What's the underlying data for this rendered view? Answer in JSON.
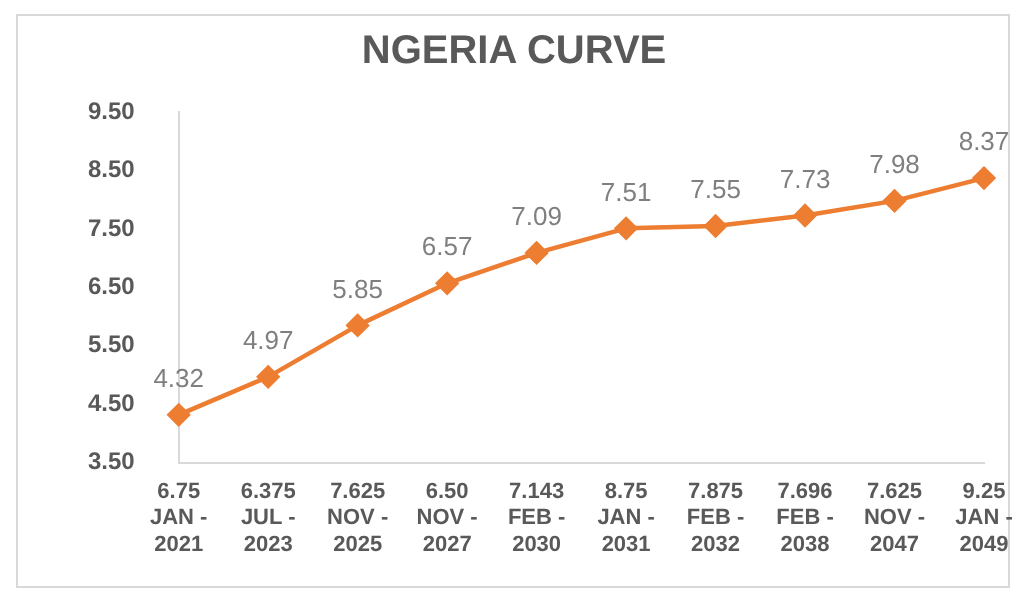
{
  "chart_data": {
    "type": "line",
    "title": "NGERIA CURVE",
    "categories": [
      "6.75\nJAN -\n2021",
      "6.375\nJUL -\n2023",
      "7.625\nNOV -\n2025",
      "6.50\nNOV -\n2027",
      "7.143\nFEB -\n2030",
      "8.75\nJAN -\n2031",
      "7.875\nFEB -\n2032",
      "7.696\nFEB -\n2038",
      "7.625\nNOV -\n2047",
      "9.25\nJAN -\n2049"
    ],
    "series": [
      {
        "color": "#ed7d31",
        "values": [
          4.32,
          4.97,
          5.85,
          6.57,
          7.09,
          7.51,
          7.55,
          7.73,
          7.98,
          8.37
        ]
      }
    ],
    "ylim": [
      3.5,
      9.5
    ],
    "yticks": [
      {
        "value": 3.5,
        "label": "3.50"
      },
      {
        "value": 4.5,
        "label": "4.50"
      },
      {
        "value": 5.5,
        "label": "5.50"
      },
      {
        "value": 6.5,
        "label": "6.50"
      },
      {
        "value": 7.5,
        "label": "7.50"
      },
      {
        "value": 8.5,
        "label": "8.50"
      },
      {
        "value": 9.5,
        "label": "9.50"
      }
    ],
    "grid": false,
    "legend": false,
    "marker": "diamond",
    "line_style": "solid",
    "data_labels": true
  }
}
